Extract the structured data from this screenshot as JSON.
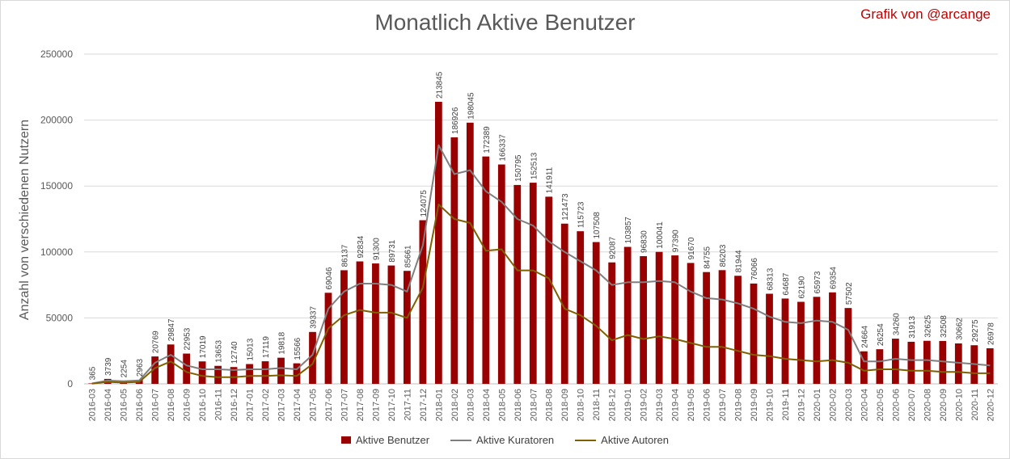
{
  "header": {
    "title": "Monatlich Aktive Benutzer",
    "credit": "Grafik von @arcange"
  },
  "colors": {
    "bars": "#990000",
    "curators": "#7f7f7f",
    "authors": "#7f6000",
    "grid": "#d9d9d9",
    "text": "#595959",
    "credit": "#c00000"
  },
  "chart_data": {
    "type": "bar",
    "title": "Monatlich Aktive Benutzer",
    "xlabel": "",
    "ylabel": "Anzahl von verschiedenen Nutzern",
    "ylim": [
      0,
      250000
    ],
    "yticks": [
      0,
      50000,
      100000,
      150000,
      200000,
      250000
    ],
    "ytick_labels": [
      "0",
      "50000",
      "100000",
      "150000",
      "200000",
      "250000"
    ],
    "grid": true,
    "legend_position": "bottom",
    "categories": [
      "2016-03",
      "2016-04",
      "2016-05",
      "2016-06",
      "2016-07",
      "2016-08",
      "2016-09",
      "2016-10",
      "2016-11",
      "2016-12",
      "2017-01",
      "2017-02",
      "2017-03",
      "2017-04",
      "2017-05",
      "2017-06",
      "2017-07",
      "2017-08",
      "2017-09",
      "2017-10",
      "2017-11",
      "2017-12",
      "2018-01",
      "2018-02",
      "2018-03",
      "2018-04",
      "2018-05",
      "2018-06",
      "2018-07",
      "2018-08",
      "2018-09",
      "2018-10",
      "2018-11",
      "2018-12",
      "2019-01",
      "2019-02",
      "2019-03",
      "2019-04",
      "2019-05",
      "2019-06",
      "2019-07",
      "2019-08",
      "2019-09",
      "2019-10",
      "2019-11",
      "2019-12",
      "2020-01",
      "2020-02",
      "2020-03",
      "2020-04",
      "2020-05",
      "2020-06",
      "2020-07",
      "2020-08",
      "2020-09",
      "2020-10",
      "2020-11",
      "2020-12"
    ],
    "series": [
      {
        "name": "Aktive Benutzer",
        "type": "bar",
        "values": [
          365,
          3739,
          2254,
          2963,
          20769,
          29847,
          22953,
          17019,
          13653,
          12740,
          15013,
          17119,
          19818,
          15566,
          39337,
          69046,
          86137,
          92834,
          91300,
          89731,
          85661,
          124075,
          213845,
          186926,
          198045,
          172389,
          166337,
          150795,
          152513,
          141911,
          121473,
          115723,
          107508,
          92087,
          103857,
          96830,
          100041,
          97390,
          91670,
          84755,
          86203,
          81944,
          76066,
          68313,
          64687,
          62190,
          65973,
          69354,
          57502,
          24664,
          26254,
          34260,
          31913,
          32625,
          32508,
          30662,
          29275,
          26978
        ]
      },
      {
        "name": "Aktive Kuratoren",
        "type": "line",
        "values": [
          300,
          2500,
          2000,
          2600,
          16000,
          22000,
          14000,
          11000,
          11000,
          10500,
          11000,
          11000,
          12000,
          11000,
          22000,
          57000,
          70000,
          76000,
          76000,
          75000,
          70000,
          105000,
          181000,
          159000,
          162000,
          146000,
          138000,
          125000,
          120000,
          108000,
          100000,
          93000,
          86000,
          75000,
          77000,
          77000,
          78000,
          77000,
          70000,
          65000,
          64000,
          61000,
          57000,
          51000,
          47000,
          46000,
          48000,
          47000,
          41000,
          17000,
          17000,
          19000,
          18000,
          18000,
          17000,
          16000,
          15000,
          14000
        ]
      },
      {
        "name": "Aktive Autoren",
        "type": "line",
        "values": [
          200,
          1500,
          1000,
          1500,
          12000,
          17000,
          9000,
          6000,
          5000,
          5000,
          6000,
          6000,
          6500,
          6000,
          15000,
          42000,
          52000,
          56000,
          54000,
          54000,
          50000,
          73000,
          136000,
          125000,
          122000,
          101000,
          102000,
          86000,
          86000,
          80000,
          57000,
          52000,
          44000,
          33000,
          37000,
          34000,
          36000,
          34000,
          31000,
          28000,
          28000,
          25000,
          22000,
          21000,
          19000,
          18000,
          17000,
          18000,
          16000,
          10000,
          11000,
          11000,
          10000,
          10000,
          9000,
          9000,
          8000,
          8000
        ]
      }
    ]
  }
}
